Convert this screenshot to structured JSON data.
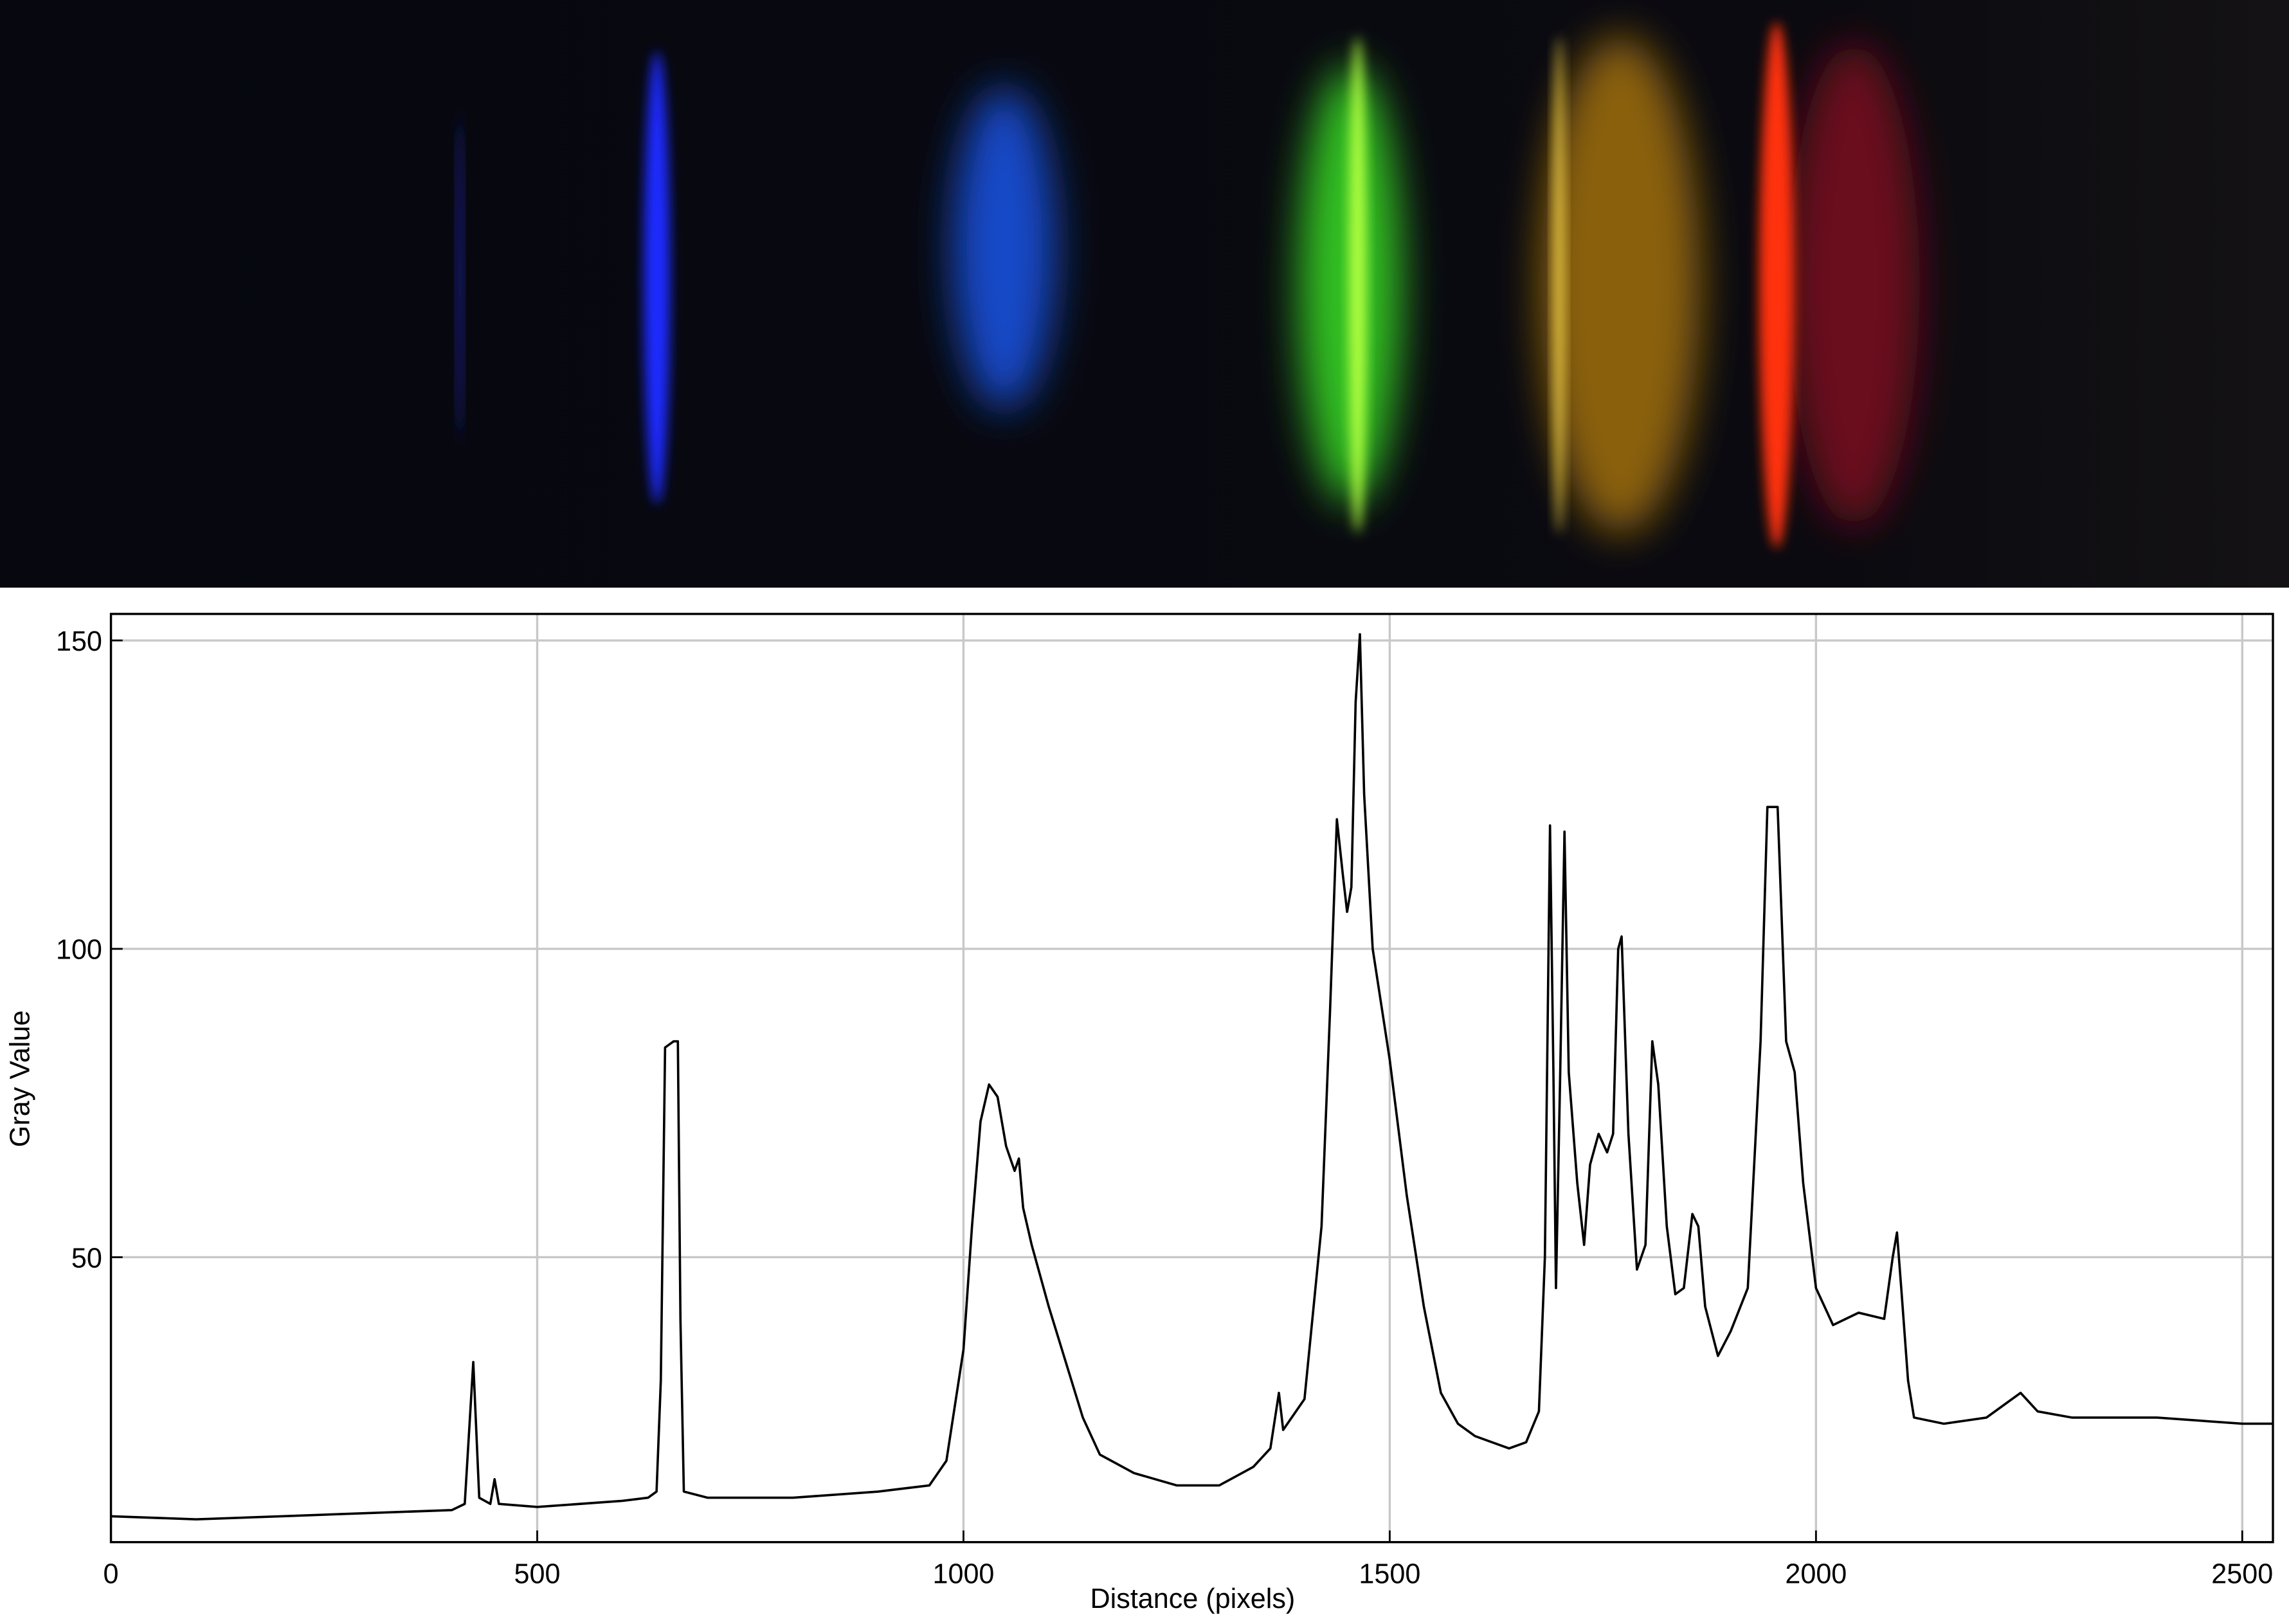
{
  "chart_data": {
    "type": "line",
    "x_label": "Distance (pixels)",
    "y_label": "Gray Value",
    "xlim": [
      0,
      2536
    ],
    "ylim": [
      3.8,
      154.3
    ],
    "xticks": [
      0,
      500,
      1000,
      1500,
      2000,
      2500
    ],
    "yticks": [
      50,
      100,
      150
    ],
    "grid": true,
    "series": [
      {
        "color": "#000000",
        "x": [
          0,
          100,
          200,
          300,
          400,
          415,
          425,
          432,
          445,
          450,
          455,
          500,
          600,
          630,
          640,
          645,
          650,
          660,
          665,
          668,
          672,
          700,
          800,
          900,
          960,
          980,
          1000,
          1010,
          1020,
          1030,
          1040,
          1050,
          1060,
          1065,
          1070,
          1080,
          1100,
          1120,
          1140,
          1160,
          1200,
          1250,
          1300,
          1340,
          1360,
          1370,
          1375,
          1400,
          1420,
          1430,
          1438,
          1445,
          1450,
          1455,
          1460,
          1465,
          1470,
          1480,
          1500,
          1520,
          1540,
          1560,
          1580,
          1600,
          1620,
          1640,
          1660,
          1675,
          1682,
          1688,
          1692,
          1695,
          1700,
          1705,
          1710,
          1720,
          1728,
          1735,
          1745,
          1755,
          1762,
          1768,
          1772,
          1780,
          1790,
          1800,
          1808,
          1815,
          1825,
          1835,
          1845,
          1855,
          1862,
          1870,
          1885,
          1900,
          1920,
          1935,
          1943,
          1955,
          1965,
          1975,
          1985,
          2000,
          2020,
          2050,
          2080,
          2090,
          2095,
          2100,
          2108,
          2115,
          2150,
          2200,
          2240,
          2260,
          2300,
          2400,
          2500,
          2536
        ],
        "values": [
          8,
          7.5,
          8,
          8.5,
          9,
          10,
          33,
          11,
          10,
          14,
          10,
          9.5,
          10.5,
          11,
          12,
          30,
          84,
          85,
          85,
          40,
          12,
          11,
          11,
          12,
          13,
          17,
          35,
          55,
          72,
          78,
          76,
          68,
          64,
          66,
          58,
          52,
          42,
          33,
          24,
          18,
          15,
          13,
          13,
          16,
          19,
          28,
          22,
          27,
          55,
          90,
          121,
          112,
          106,
          110,
          140,
          151,
          125,
          100,
          82,
          60,
          42,
          28,
          23,
          21,
          20,
          19,
          20,
          25,
          50,
          120,
          80,
          45,
          80,
          119,
          80,
          62,
          52,
          65,
          70,
          67,
          70,
          100,
          102,
          70,
          48,
          52,
          85,
          78,
          55,
          44,
          45,
          57,
          55,
          42,
          34,
          38,
          45,
          85,
          123,
          123,
          85,
          80,
          62,
          45,
          39,
          41,
          40,
          50,
          54,
          45,
          30,
          24,
          23,
          24,
          28,
          25,
          24,
          24,
          23,
          23
        ]
      }
    ]
  }
}
